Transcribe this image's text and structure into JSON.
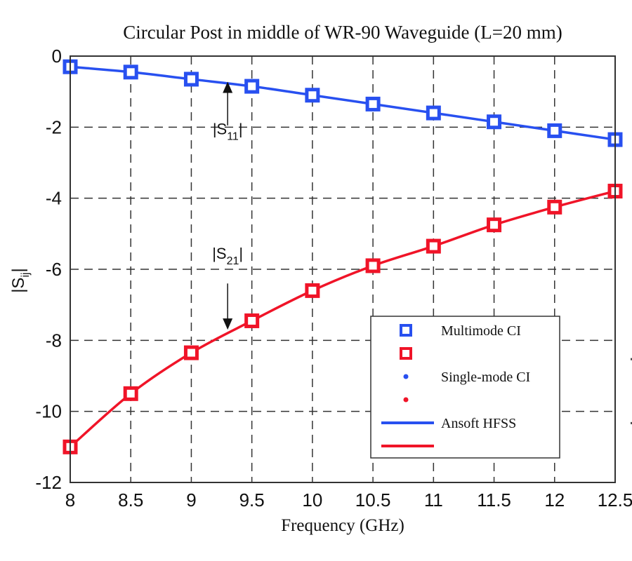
{
  "chart_data": {
    "type": "line",
    "title": "Circular Post in middle of WR-90 Waveguide (L=20 mm)",
    "xlabel": "Frequency  (GHz)",
    "ylabel": {
      "main": "|S",
      "sub": "ij",
      "end": "|"
    },
    "xlim": [
      8,
      12.5
    ],
    "ylim": [
      -12,
      0
    ],
    "grid": true,
    "x_ticks": [
      8,
      8.5,
      9,
      9.5,
      10,
      10.5,
      11,
      11.5,
      12,
      12.5
    ],
    "x_tick_labels": [
      "8",
      "8.5",
      "9",
      "9.5",
      "10",
      "10.5",
      "11",
      "11.5",
      "12",
      "12.5"
    ],
    "y_ticks": [
      0,
      -2,
      -4,
      -6,
      -8,
      -10,
      -12
    ],
    "y_tick_labels": [
      "0",
      "-2",
      "-4",
      "-6",
      "-8",
      "-10",
      "-12"
    ],
    "x": [
      8,
      8.5,
      9,
      9.5,
      10,
      10.5,
      11,
      11.5,
      12,
      12.5
    ],
    "series": [
      {
        "name": "Multimode CI |S11|",
        "kind": "markers-square",
        "color": "#2850f0",
        "values": [
          -0.3,
          -0.45,
          -0.65,
          -0.85,
          -1.1,
          -1.35,
          -1.6,
          -1.85,
          -2.1,
          -2.35
        ]
      },
      {
        "name": "Multimode CI |S21|",
        "kind": "markers-square",
        "color": "#f01428",
        "values": [
          -11.0,
          -9.5,
          -8.35,
          -7.45,
          -6.6,
          -5.9,
          -5.35,
          -4.75,
          -4.25,
          -3.8
        ]
      },
      {
        "name": "Ansoft HFSS |S11|",
        "kind": "line",
        "color": "#2850f0",
        "values": [
          -0.3,
          -0.45,
          -0.65,
          -0.85,
          -1.1,
          -1.35,
          -1.6,
          -1.85,
          -2.1,
          -2.35
        ]
      },
      {
        "name": "Ansoft HFSS |S21|",
        "kind": "line",
        "color": "#f01428",
        "values": [
          -11.0,
          -9.5,
          -8.35,
          -7.45,
          -6.6,
          -5.9,
          -5.35,
          -4.75,
          -4.25,
          -3.8
        ]
      }
    ],
    "annotations": [
      {
        "id": "s11",
        "main": "|S",
        "sub": "11",
        "end": "|",
        "arrow": "up",
        "x": 9.3,
        "y_text": -2.2,
        "y_arrow_tip": -0.72,
        "y_arrow_tail": -1.95
      },
      {
        "id": "s21",
        "main": "|S",
        "sub": "21",
        "end": "|",
        "arrow": "down",
        "x": 9.3,
        "y_text": -5.7,
        "y_arrow_tip": -7.7,
        "y_arrow_tail": -6.4
      }
    ],
    "legend": {
      "position": "lower-right",
      "entries": [
        {
          "marker": "square",
          "color": "#2850f0",
          "label": "Multimode CI"
        },
        {
          "marker": "square",
          "color": "#f01428",
          "label": ""
        },
        {
          "marker": "dot",
          "color": "#2850f0",
          "label": "Single-mode CI"
        },
        {
          "marker": "dot",
          "color": "#f01428",
          "label": ""
        },
        {
          "marker": "line",
          "color": "#2850f0",
          "label": "Ansoft HFSS"
        },
        {
          "marker": "line",
          "color": "#f01428",
          "label": ""
        }
      ]
    }
  }
}
